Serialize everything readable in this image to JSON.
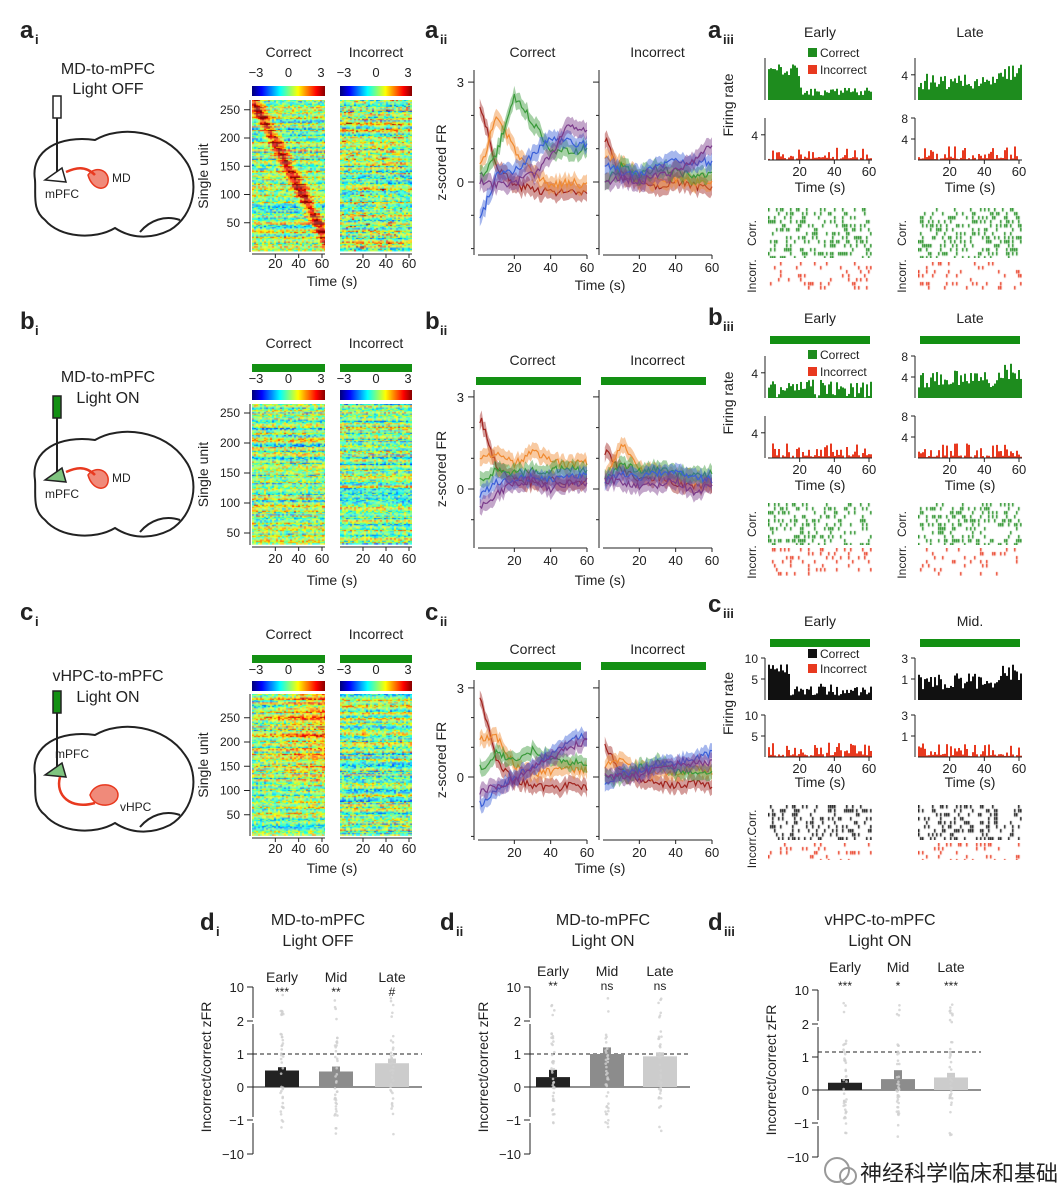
{
  "colors": {
    "correct_green": "#1e8c1e",
    "incorrect_red": "#e8391f",
    "correct_black": "#111111",
    "light_bar": "#139013",
    "mpfc_region": "#7fc47f",
    "md_region": "#f08a7a"
  },
  "rows": [
    {
      "label": "a",
      "subs": [
        "i",
        "ii",
        "iii"
      ],
      "title": [
        "MD-to-mPFC",
        "Light OFF"
      ],
      "regions": [
        "mPFC",
        "MD"
      ],
      "light_on": false,
      "heatmap": {
        "cols": [
          "Correct",
          "Incorrect"
        ],
        "colorbar_ticks": [
          "−3",
          "0",
          "3"
        ],
        "ylabel": "Single unit",
        "yticks": [
          "50",
          "100",
          "150",
          "200",
          "250"
        ],
        "xticks": [
          "20",
          "40",
          "60"
        ],
        "xlabel": "Time (s)"
      },
      "traces": {
        "cols": [
          "Correct",
          "Incorrect"
        ],
        "ylabel": "z-scored FR",
        "yticks": [
          "3",
          "0"
        ],
        "xticks": [
          "20",
          "40",
          "60"
        ],
        "xlabel": "Time (s)"
      },
      "firing": {
        "cols": [
          "Early",
          "Late"
        ],
        "legend": [
          "Correct",
          "Incorrect"
        ],
        "ylabel": "Firing rate",
        "ticks": [
          [
            [],
            [
              "4"
            ]
          ],
          [
            [
              "4"
            ],
            [
              "8",
              "4"
            ]
          ]
        ],
        "xticks": [
          "20",
          "40",
          "60"
        ],
        "xlabel": "Time (s)",
        "raster_labels": [
          "Corr.",
          "Incorr."
        ],
        "correct_color": "#1e8c1e"
      }
    },
    {
      "label": "b",
      "subs": [
        "i",
        "ii",
        "iii"
      ],
      "title": [
        "MD-to-mPFC",
        "Light ON"
      ],
      "regions": [
        "mPFC",
        "MD"
      ],
      "light_on": true,
      "heatmap": {
        "cols": [
          "Correct",
          "Incorrect"
        ],
        "colorbar_ticks": [
          "−3",
          "0",
          "3"
        ],
        "ylabel": "Single unit",
        "yticks": [
          "50",
          "100",
          "150",
          "200",
          "250"
        ],
        "xticks": [
          "20",
          "40",
          "60"
        ],
        "xlabel": "Time (s)"
      },
      "traces": {
        "cols": [
          "Correct",
          "Incorrect"
        ],
        "ylabel": "z-scored FR",
        "yticks": [
          "3",
          "0"
        ],
        "xticks": [
          "20",
          "40",
          "60"
        ],
        "xlabel": "Time (s)"
      },
      "firing": {
        "cols": [
          "Early",
          "Late"
        ],
        "legend": [
          "Correct",
          "Incorrect"
        ],
        "ylabel": "Firing rate",
        "ticks": [
          [
            [
              "4"
            ],
            [
              "4"
            ]
          ],
          [
            [
              "8",
              "4"
            ],
            [
              "8",
              "4"
            ]
          ]
        ],
        "xticks": [
          "20",
          "40",
          "60"
        ],
        "xlabel": "Time (s)",
        "raster_labels": [
          "Corr.",
          "Incorr."
        ],
        "correct_color": "#1e8c1e"
      }
    },
    {
      "label": "c",
      "subs": [
        "i",
        "ii",
        "iii"
      ],
      "title": [
        "vHPC-to-mPFC",
        "Light ON"
      ],
      "regions": [
        "mPFC",
        "vHPC"
      ],
      "light_on": true,
      "heatmap": {
        "cols": [
          "Correct",
          "Incorrect"
        ],
        "colorbar_ticks": [
          "−3",
          "0",
          "3"
        ],
        "ylabel": "Single unit",
        "yticks": [
          "50",
          "100",
          "150",
          "200",
          "250"
        ],
        "xticks": [
          "20",
          "40",
          "60"
        ],
        "xlabel": "Time (s)"
      },
      "traces": {
        "cols": [
          "Correct",
          "Incorrect"
        ],
        "ylabel": "z-scored FR",
        "yticks": [
          "3",
          "0"
        ],
        "xticks": [
          "20",
          "40",
          "60"
        ],
        "xlabel": "Time (s)"
      },
      "firing": {
        "cols": [
          "Early",
          "Mid."
        ],
        "legend": [
          "Correct",
          "Incorrect"
        ],
        "ylabel": "Firing rate",
        "ticks": [
          [
            [
              "10",
              "5"
            ],
            [
              "10",
              "5"
            ]
          ],
          [
            [
              "3",
              "1"
            ],
            [
              "3",
              "1"
            ]
          ]
        ],
        "xticks": [
          "20",
          "40",
          "60"
        ],
        "xlabel": "Time (s)",
        "raster_labels": [
          "Corr.",
          "Incorr."
        ],
        "correct_color": "#111111"
      }
    }
  ],
  "chart_data": [
    {
      "type": "line",
      "panel": "a_ii",
      "ylabel": "z-scored FR",
      "xlabel": "Time (s)",
      "x": [
        2,
        10,
        20,
        30,
        40,
        50,
        60
      ],
      "ylim": [
        -1.8,
        3.2
      ],
      "colors": [
        "#a0231e",
        "#f08a30",
        "#3a9a3a",
        "#3a5fd8",
        "#7a3a8a"
      ],
      "correct": [
        [
          2.2,
          0.5,
          -0.1,
          -0.2,
          -0.3,
          -0.3,
          -0.4
        ],
        [
          0.5,
          2.0,
          1.0,
          0.2,
          -0.1,
          0.0,
          -0.1
        ],
        [
          0.2,
          0.8,
          2.6,
          1.8,
          1.0,
          0.9,
          1.0
        ],
        [
          -1.0,
          0.2,
          0.3,
          0.8,
          1.3,
          1.2,
          1.1
        ],
        [
          0.0,
          -0.1,
          0.0,
          0.2,
          0.8,
          1.8,
          1.5
        ]
      ],
      "incorrect": [
        [
          1.2,
          0.2,
          0.0,
          -0.1,
          0.0,
          -0.1,
          -0.2
        ],
        [
          0.8,
          0.5,
          0.1,
          0.0,
          0.1,
          0.0,
          0.0
        ],
        [
          0.0,
          0.5,
          0.2,
          0.4,
          0.3,
          0.2,
          0.3
        ],
        [
          0.5,
          0.3,
          0.2,
          0.5,
          0.6,
          0.6,
          0.6
        ],
        [
          0.0,
          0.1,
          0.0,
          0.2,
          0.3,
          0.6,
          1.2
        ]
      ]
    },
    {
      "type": "line",
      "panel": "b_ii",
      "ylabel": "z-scored FR",
      "xlabel": "Time (s)",
      "x": [
        2,
        10,
        20,
        30,
        40,
        50,
        60
      ],
      "ylim": [
        -1.8,
        3.2
      ],
      "colors": [
        "#a0231e",
        "#f08a30",
        "#3a9a3a",
        "#3a5fd8",
        "#7a3a8a"
      ],
      "correct": [
        [
          2.2,
          0.8,
          0.3,
          0.2,
          0.3,
          0.2,
          0.3
        ],
        [
          1.0,
          1.2,
          0.8,
          1.2,
          0.9,
          0.8,
          0.9
        ],
        [
          0.3,
          0.6,
          0.5,
          0.6,
          0.6,
          0.7,
          0.6
        ],
        [
          -0.2,
          0.2,
          0.3,
          0.4,
          0.3,
          0.4,
          0.5
        ],
        [
          -0.6,
          -0.2,
          0.2,
          0.3,
          0.0,
          0.2,
          0.2
        ]
      ],
      "incorrect": [
        [
          1.2,
          0.6,
          0.3,
          0.4,
          0.2,
          0.1,
          0.2
        ],
        [
          0.4,
          1.5,
          0.6,
          0.5,
          0.4,
          0.3,
          0.2
        ],
        [
          0.3,
          0.8,
          0.6,
          0.7,
          0.5,
          0.4,
          0.5
        ],
        [
          0.3,
          0.5,
          0.4,
          0.5,
          0.5,
          0.4,
          0.3
        ],
        [
          0.3,
          0.2,
          0.1,
          0.1,
          0.3,
          -0.1,
          0.1
        ]
      ]
    },
    {
      "type": "line",
      "panel": "c_ii",
      "ylabel": "z-scored FR",
      "xlabel": "Time (s)",
      "x": [
        2,
        10,
        20,
        30,
        40,
        50,
        60
      ],
      "ylim": [
        -1.8,
        3.2
      ],
      "colors": [
        "#a0231e",
        "#f08a30",
        "#3a9a3a",
        "#3a5fd8",
        "#7a3a8a"
      ],
      "correct": [
        [
          2.6,
          0.5,
          -0.1,
          -0.3,
          -0.4,
          -0.3,
          -0.4
        ],
        [
          1.3,
          1.4,
          0.4,
          0.1,
          0.2,
          0.3,
          0.2
        ],
        [
          0.3,
          0.8,
          0.6,
          0.9,
          0.6,
          0.5,
          0.5
        ],
        [
          -0.9,
          -0.5,
          0.0,
          0.3,
          0.8,
          1.2,
          1.4
        ],
        [
          -0.5,
          -0.3,
          -0.1,
          0.3,
          0.6,
          1.0,
          1.2
        ]
      ],
      "incorrect": [
        [
          1.0,
          0.2,
          -0.1,
          -0.2,
          -0.3,
          -0.2,
          -0.3
        ],
        [
          0.4,
          0.6,
          0.2,
          0.2,
          0.1,
          0.3,
          0.2
        ],
        [
          0.0,
          0.0,
          0.3,
          0.5,
          0.2,
          0.1,
          0.2
        ],
        [
          -0.2,
          0.1,
          0.2,
          0.4,
          0.5,
          0.6,
          0.8
        ],
        [
          0.0,
          0.0,
          0.1,
          0.3,
          0.4,
          0.5,
          0.5
        ]
      ]
    },
    {
      "type": "bar",
      "panel": "d_i",
      "label": "d",
      "sub": "i",
      "title": [
        "MD-to-mPFC",
        "Light OFF"
      ],
      "categories": [
        "Early",
        "Mid",
        "Late"
      ],
      "significance": [
        "***",
        "**",
        "#"
      ],
      "values": [
        0.5,
        0.47,
        0.72
      ],
      "error_top": [
        0.6,
        0.62,
        0.86
      ],
      "bar_colors": [
        "#222222",
        "#8c8c8c",
        "#cccccc"
      ],
      "ylabel": "Incorrect/correct zFR",
      "yticks": [
        "10",
        "2",
        "1",
        "0",
        "−1",
        "−10"
      ],
      "ylim": [
        -10,
        10
      ],
      "reference_line": 1
    },
    {
      "type": "bar",
      "panel": "d_ii",
      "label": "d",
      "sub": "ii",
      "title": [
        "MD-to-mPFC",
        "Light ON"
      ],
      "categories": [
        "Early",
        "Mid",
        "Late"
      ],
      "significance": [
        "**",
        "ns",
        "ns"
      ],
      "values": [
        0.3,
        1.0,
        0.93
      ],
      "error_top": [
        0.52,
        1.2,
        1.05
      ],
      "bar_colors": [
        "#222222",
        "#8c8c8c",
        "#cccccc"
      ],
      "ylabel": "Incorrect/correct zFR",
      "yticks": [
        "10",
        "2",
        "1",
        "0",
        "−1",
        "−10"
      ],
      "ylim": [
        -10,
        10
      ],
      "reference_line": 1
    },
    {
      "type": "bar",
      "panel": "d_iii",
      "label": "d",
      "sub": "iii",
      "title": [
        "vHPC-to-mPFC",
        "Light ON"
      ],
      "categories": [
        "Early",
        "Mid",
        "Late"
      ],
      "significance": [
        "***",
        "*",
        "***"
      ],
      "values": [
        0.22,
        0.33,
        0.38
      ],
      "error_top": [
        0.33,
        0.6,
        0.52
      ],
      "bar_colors": [
        "#222222",
        "#8c8c8c",
        "#cccccc"
      ],
      "ylabel": "Incorrect/correct zFR",
      "yticks": [
        "10",
        "2",
        "1",
        "0",
        "−1",
        "−10"
      ],
      "ylim": [
        -10,
        10
      ],
      "reference_line": 1.15
    }
  ],
  "watermark": "神经科学临床和基础"
}
